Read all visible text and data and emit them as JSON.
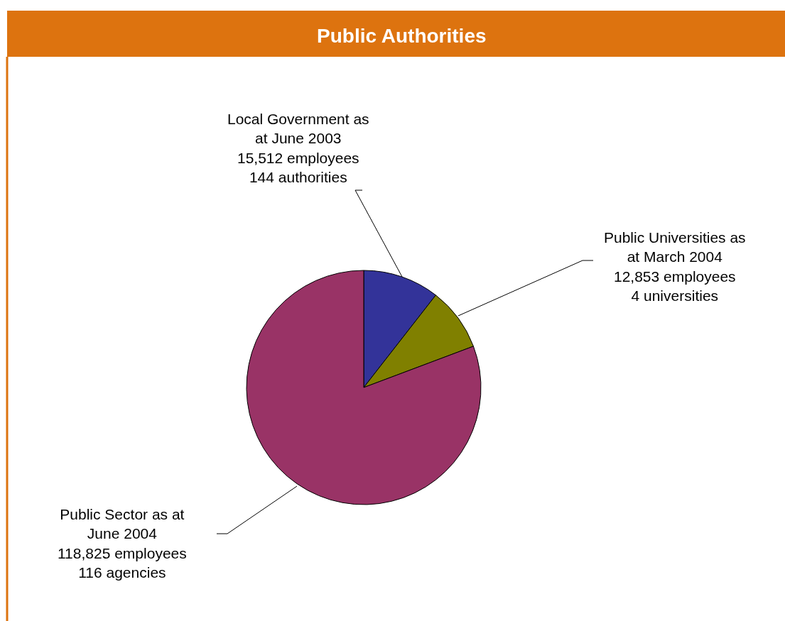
{
  "chart_data": {
    "type": "pie",
    "title": "Public Authorities",
    "categories": [
      "Local Government as\nat June 2003\n15,512 employees\n144 authorities",
      "Public Universities as\nat March 2004\n12,853 employees\n4 universities",
      "Public Sector as at\nJune 2004\n118,825 employees\n116 agencies"
    ],
    "values": [
      15512,
      12853,
      118825
    ],
    "colors": [
      "#333399",
      "#808000",
      "#993366"
    ]
  }
}
